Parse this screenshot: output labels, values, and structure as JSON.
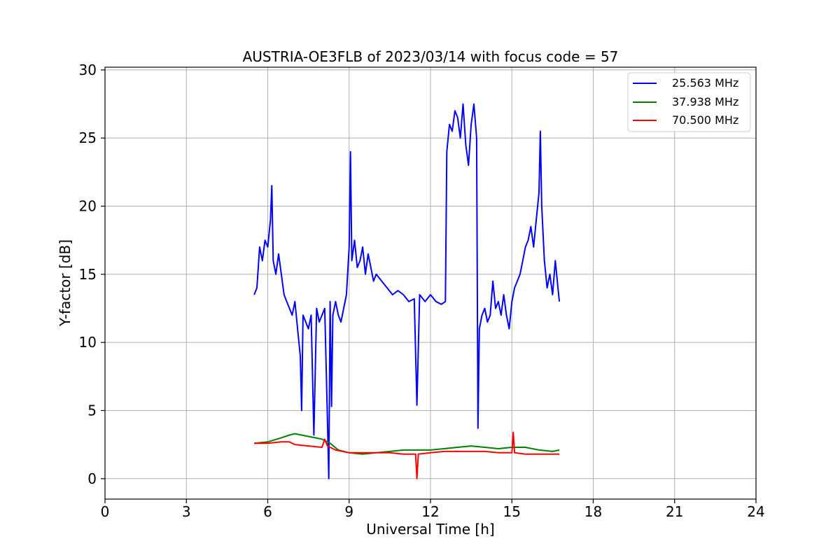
{
  "chart_data": {
    "type": "line",
    "title": "AUSTRIA-OE3FLB of 2023/03/14 with focus code = 57",
    "xlabel": "Universal Time [h]",
    "ylabel": "Y-factor [dB]",
    "xlim": [
      0,
      24
    ],
    "ylim": [
      -1.5,
      30.2
    ],
    "xticks": [
      0,
      3,
      6,
      9,
      12,
      15,
      18,
      21,
      24
    ],
    "xtick_labels": [
      "0",
      "3",
      "6",
      "9",
      "12",
      "15",
      "18",
      "21",
      "24"
    ],
    "yticks": [
      0,
      5,
      10,
      15,
      20,
      25,
      30
    ],
    "ytick_labels": [
      "0",
      "5",
      "10",
      "15",
      "20",
      "25",
      "30"
    ],
    "grid": true,
    "legend_position": "upper right",
    "series": [
      {
        "name": "25.563 MHz",
        "color": "#0000ff",
        "x": [
          5.5,
          5.6,
          5.7,
          5.8,
          5.9,
          6.0,
          6.1,
          6.15,
          6.2,
          6.3,
          6.4,
          6.5,
          6.6,
          6.7,
          6.8,
          6.9,
          7.0,
          7.1,
          7.2,
          7.25,
          7.3,
          7.4,
          7.5,
          7.6,
          7.7,
          7.8,
          7.9,
          8.0,
          8.1,
          8.2,
          8.25,
          8.3,
          8.35,
          8.4,
          8.5,
          8.6,
          8.7,
          8.8,
          8.9,
          9.0,
          9.05,
          9.1,
          9.2,
          9.3,
          9.4,
          9.5,
          9.6,
          9.7,
          9.8,
          9.9,
          10.0,
          10.2,
          10.4,
          10.6,
          10.8,
          11.0,
          11.2,
          11.4,
          11.5,
          11.6,
          11.8,
          12.0,
          12.2,
          12.4,
          12.55,
          12.6,
          12.7,
          12.8,
          12.9,
          13.0,
          13.1,
          13.2,
          13.3,
          13.4,
          13.5,
          13.6,
          13.7,
          13.75,
          13.8,
          13.9,
          14.0,
          14.1,
          14.2,
          14.3,
          14.4,
          14.5,
          14.6,
          14.7,
          14.8,
          14.9,
          15.0,
          15.1,
          15.2,
          15.3,
          15.4,
          15.5,
          15.6,
          15.7,
          15.8,
          15.9,
          16.0,
          16.05,
          16.1,
          16.2,
          16.3,
          16.4,
          16.5,
          16.6,
          16.7,
          16.75
        ],
        "values": [
          13.5,
          14.0,
          17.0,
          16.0,
          17.5,
          17.0,
          19.0,
          21.5,
          16.0,
          15.0,
          16.5,
          15.0,
          13.5,
          13.0,
          12.5,
          12.0,
          13.0,
          11.0,
          9.0,
          5.0,
          12.0,
          11.5,
          11.0,
          12.0,
          3.2,
          12.5,
          11.5,
          12.0,
          12.5,
          4.5,
          0.0,
          13.0,
          5.3,
          12.0,
          13.0,
          12.0,
          11.5,
          12.5,
          13.5,
          17.0,
          24.0,
          16.0,
          17.5,
          15.5,
          16.0,
          17.0,
          15.0,
          16.5,
          15.5,
          14.5,
          15.0,
          14.5,
          14.0,
          13.5,
          13.8,
          13.5,
          13.0,
          13.2,
          5.4,
          13.5,
          13.0,
          13.5,
          13.0,
          12.8,
          13.0,
          24.0,
          26.0,
          25.5,
          27.0,
          26.5,
          25.0,
          27.5,
          24.5,
          23.0,
          26.0,
          27.5,
          25.0,
          3.7,
          11.0,
          12.0,
          12.5,
          11.5,
          12.0,
          14.5,
          12.5,
          13.0,
          12.0,
          13.5,
          12.0,
          11.0,
          13.0,
          14.0,
          14.5,
          15.0,
          16.0,
          17.0,
          17.5,
          18.5,
          17.0,
          19.0,
          21.0,
          25.5,
          20.0,
          16.0,
          14.0,
          15.0,
          13.5,
          16.0,
          14.0,
          13.0
        ]
      },
      {
        "name": "37.938 MHz",
        "color": "#008000",
        "x": [
          5.5,
          6.0,
          6.5,
          6.8,
          7.0,
          7.5,
          8.0,
          8.3,
          8.6,
          9.0,
          9.5,
          10.0,
          10.5,
          11.0,
          11.5,
          12.0,
          12.5,
          13.0,
          13.5,
          14.0,
          14.5,
          15.0,
          15.5,
          16.0,
          16.5,
          16.75
        ],
        "values": [
          2.6,
          2.7,
          3.0,
          3.2,
          3.3,
          3.1,
          2.9,
          2.6,
          2.1,
          1.9,
          1.8,
          1.9,
          2.0,
          2.1,
          2.1,
          2.1,
          2.2,
          2.3,
          2.4,
          2.3,
          2.2,
          2.3,
          2.3,
          2.1,
          2.0,
          2.1
        ]
      },
      {
        "name": "70.500 MHz",
        "color": "#ff0000",
        "x": [
          5.5,
          6.0,
          6.5,
          6.8,
          7.0,
          7.5,
          8.0,
          8.1,
          8.2,
          8.5,
          9.0,
          9.5,
          10.0,
          10.5,
          11.0,
          11.45,
          11.5,
          11.55,
          12.0,
          12.5,
          13.0,
          13.5,
          14.0,
          14.5,
          15.0,
          15.05,
          15.1,
          15.5,
          16.0,
          16.5,
          16.75
        ],
        "values": [
          2.6,
          2.6,
          2.7,
          2.7,
          2.5,
          2.4,
          2.3,
          2.9,
          2.4,
          2.1,
          1.9,
          1.9,
          1.9,
          1.9,
          1.8,
          1.8,
          0.0,
          1.8,
          1.9,
          2.0,
          2.0,
          2.0,
          2.0,
          1.9,
          1.9,
          3.4,
          1.9,
          1.8,
          1.8,
          1.8,
          1.8
        ]
      }
    ]
  }
}
